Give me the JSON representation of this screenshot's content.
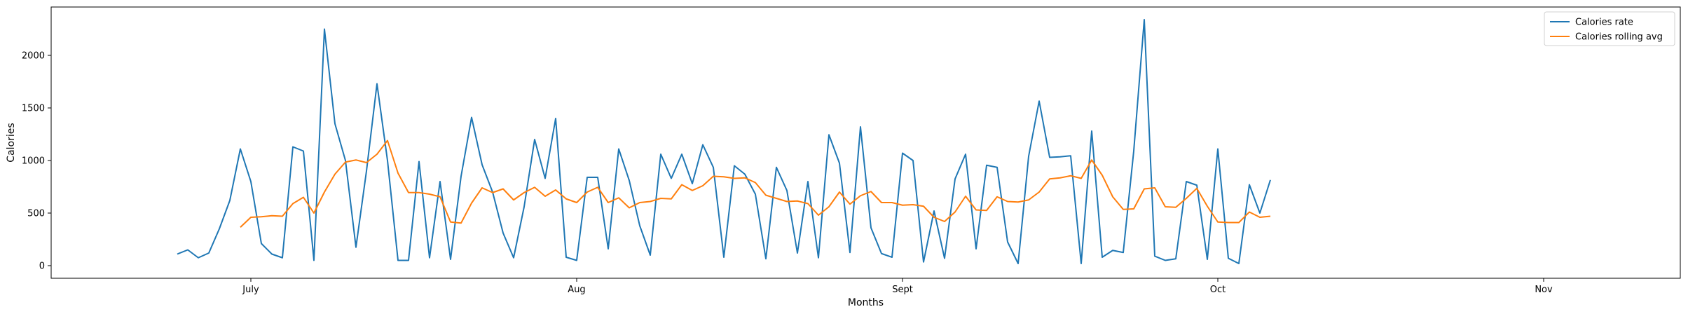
{
  "chart_data": {
    "type": "line",
    "xlabel": "Months",
    "ylabel": "Calories",
    "xlim": [
      "2024-06-12",
      "2024-11-14"
    ],
    "ylim": [
      -120,
      2460
    ],
    "x_ticks": [
      {
        "date": "2024-07-01",
        "label": "July"
      },
      {
        "date": "2024-08-01",
        "label": "Aug"
      },
      {
        "date": "2024-09-01",
        "label": "Sept"
      },
      {
        "date": "2024-10-01",
        "label": "Oct"
      },
      {
        "date": "2024-11-01",
        "label": "Nov"
      }
    ],
    "y_ticks": [
      0,
      500,
      1000,
      1500,
      2000
    ],
    "legend_position": "top-right",
    "start_date": "2024-06-24",
    "series": [
      {
        "name": "Calories rate",
        "color": "#1f77b4",
        "values": [
          110,
          150,
          75,
          120,
          350,
          620,
          1110,
          800,
          210,
          110,
          75,
          1130,
          1090,
          50,
          2250,
          1350,
          1000,
          175,
          900,
          1730,
          1000,
          50,
          50,
          990,
          75,
          800,
          60,
          850,
          1410,
          960,
          700,
          310,
          75,
          560,
          1200,
          830,
          1400,
          80,
          50,
          840,
          840,
          160,
          1110,
          810,
          380,
          100,
          1060,
          830,
          1060,
          780,
          1150,
          935,
          80,
          950,
          870,
          680,
          65,
          935,
          715,
          120,
          800,
          75,
          1245,
          975,
          125,
          1320,
          360,
          115,
          80,
          1070,
          1000,
          35,
          520,
          70,
          825,
          1060,
          160,
          955,
          935,
          225,
          20,
          1040,
          1565,
          1030,
          1035,
          1045,
          20,
          1280,
          80,
          145,
          125,
          1090,
          2340,
          90,
          50,
          65,
          800,
          765,
          60,
          1110,
          70,
          20,
          770,
          500,
          815
        ]
      },
      {
        "name": "Calories rolling avg",
        "color": "#ff7f0e",
        "offset": 6,
        "values": [
          365,
          460,
          465,
          475,
          470,
          590,
          650,
          500,
          700,
          870,
          985,
          1005,
          980,
          1060,
          1190,
          880,
          695,
          695,
          680,
          655,
          415,
          405,
          595,
          740,
          695,
          730,
          625,
          695,
          745,
          660,
          720,
          635,
          600,
          700,
          745,
          600,
          645,
          550,
          600,
          610,
          640,
          635,
          770,
          715,
          760,
          850,
          845,
          830,
          835,
          790,
          670,
          640,
          610,
          615,
          590,
          480,
          560,
          700,
          585,
          665,
          705,
          600,
          600,
          575,
          580,
          565,
          460,
          420,
          510,
          660,
          530,
          525,
          655,
          610,
          605,
          625,
          700,
          825,
          835,
          855,
          830,
          1005,
          860,
          655,
          535,
          540,
          730,
          740,
          560,
          555,
          640,
          735,
          565,
          415,
          410,
          410,
          510,
          460,
          470
        ]
      }
    ]
  }
}
